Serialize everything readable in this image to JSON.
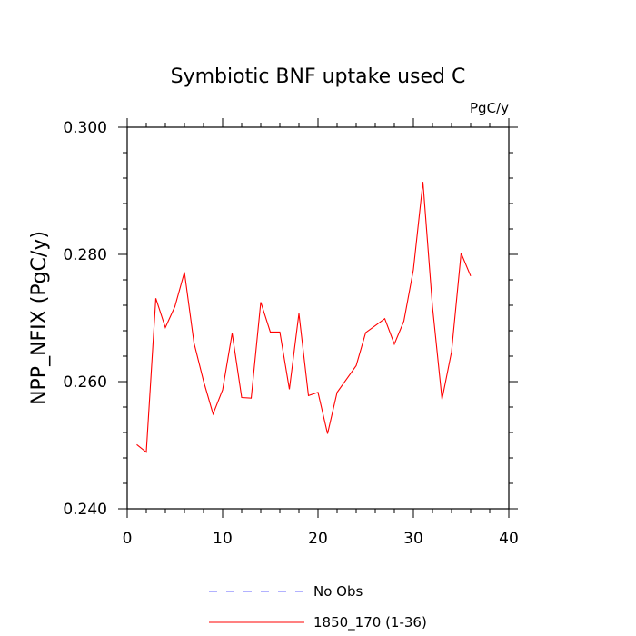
{
  "chart_data": {
    "type": "line",
    "title": "Symbiotic BNF uptake used C",
    "units_label": "PgC/y",
    "ylabel": "NPP_NFIX  (PgC/y)",
    "xlabel": "",
    "xlim": [
      0,
      40
    ],
    "ylim": [
      0.24,
      0.3
    ],
    "x_ticks": [
      0,
      10,
      20,
      30,
      40
    ],
    "x_tick_labels": [
      "0",
      "10",
      "20",
      "30",
      "40"
    ],
    "y_ticks": [
      0.24,
      0.26,
      0.28,
      0.3
    ],
    "y_tick_labels": [
      "0.240",
      "0.260",
      "0.280",
      "0.300"
    ],
    "grid": false,
    "legend_position": "bottom",
    "series": [
      {
        "name": "1850_170 (1-36)",
        "color": "#ff0000",
        "style": "solid",
        "x": [
          1,
          2,
          3,
          4,
          5,
          6,
          7,
          8,
          9,
          10,
          11,
          12,
          13,
          14,
          15,
          16,
          17,
          18,
          19,
          20,
          21,
          22,
          23,
          24,
          25,
          26,
          27,
          28,
          29,
          30,
          31,
          32,
          33,
          34,
          35,
          36
        ],
        "values": [
          0.2501,
          0.2489,
          0.2731,
          0.2685,
          0.2718,
          0.2772,
          0.2661,
          0.2601,
          0.2549,
          0.2587,
          0.2676,
          0.2575,
          0.2574,
          0.2725,
          0.2678,
          0.2678,
          0.2588,
          0.2707,
          0.2578,
          0.2583,
          0.2518,
          0.2583,
          0.2604,
          0.2625,
          0.2677,
          0.2688,
          0.2699,
          0.2659,
          0.2695,
          0.2776,
          0.2914,
          0.2718,
          0.2572,
          0.2647,
          0.2802,
          0.2766
        ]
      }
    ],
    "legend": [
      {
        "label": "No Obs",
        "color": "#6666ff",
        "style": "dashed"
      },
      {
        "label": "1850_170 (1-36)",
        "color": "#ff0000",
        "style": "solid"
      }
    ]
  }
}
